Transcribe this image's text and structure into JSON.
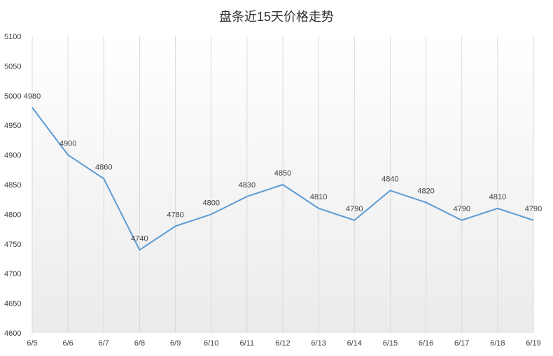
{
  "chart_data": {
    "type": "line",
    "title": "盘条近15天价格走势",
    "xlabel": "",
    "ylabel": "",
    "categories": [
      "6/5",
      "6/6",
      "6/7",
      "6/8",
      "6/9",
      "6/10",
      "6/11",
      "6/12",
      "6/13",
      "6/14",
      "6/15",
      "6/16",
      "6/17",
      "6/18",
      "6/19"
    ],
    "series": [
      {
        "values": [
          4980,
          4900,
          4860,
          4740,
          4780,
          4800,
          4830,
          4850,
          4810,
          4790,
          4840,
          4820,
          4790,
          4810,
          4790
        ]
      }
    ],
    "ylim": [
      4600,
      5100
    ],
    "yticks": [
      "4600",
      "4650",
      "4700",
      "4750",
      "4800",
      "4850",
      "4900",
      "4950",
      "5000",
      "5050",
      "5100"
    ],
    "grid": "vertical",
    "legend": "none",
    "colors": {
      "line": "#5B9BD5",
      "grid": "#D9D9D9",
      "text": "#404040"
    }
  }
}
